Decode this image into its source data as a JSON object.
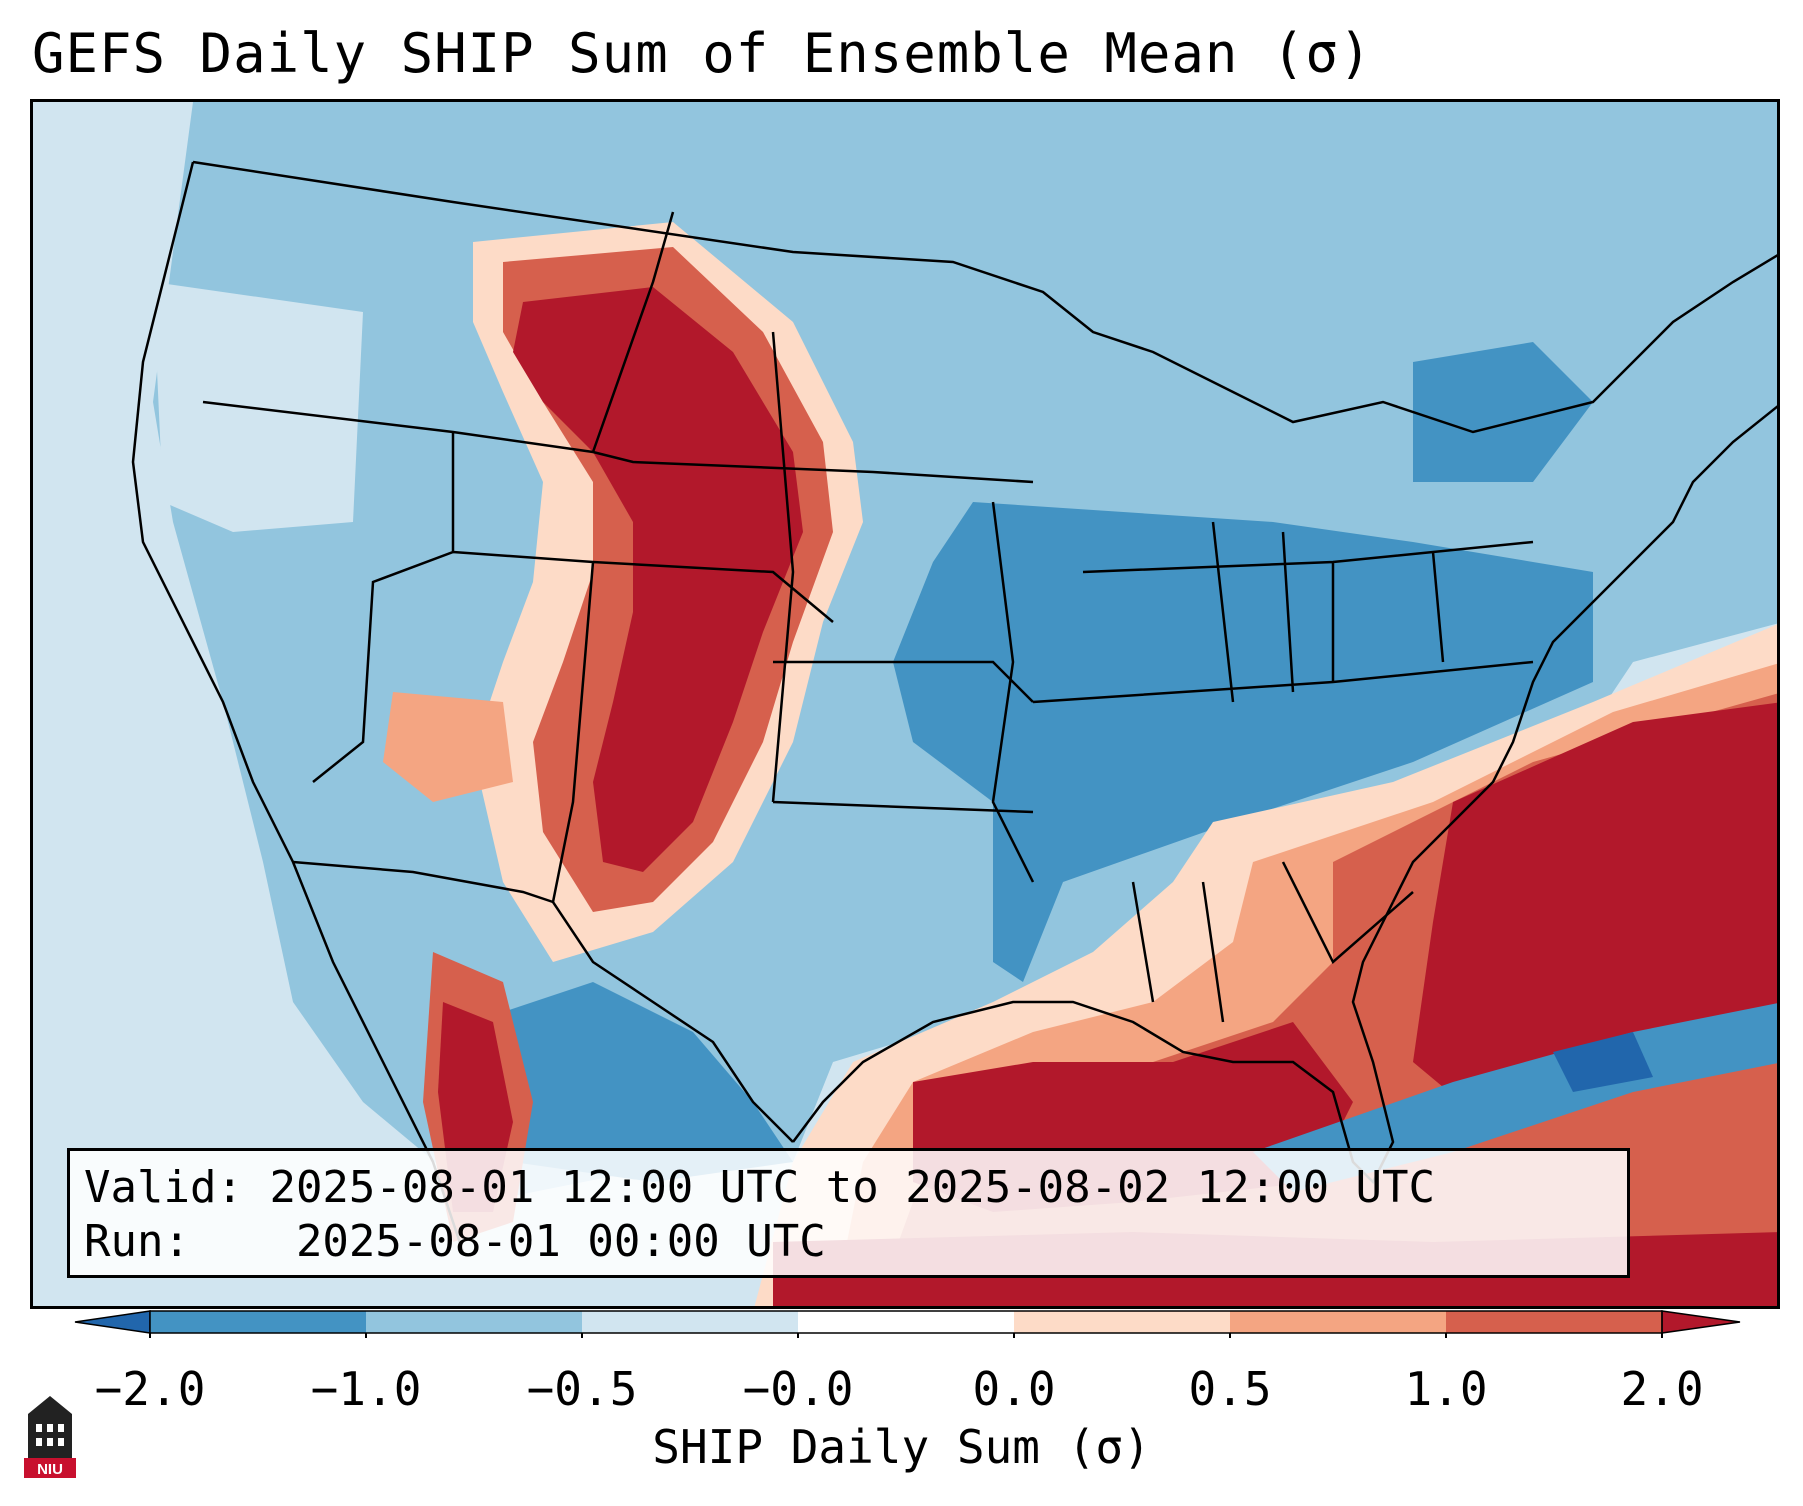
{
  "title": "GEFS Daily SHIP Sum of Ensemble Mean (σ)",
  "info": {
    "valid_label": "Valid:",
    "valid_value": "2025-08-01 12:00 UTC to 2025-08-02 12:00 UTC",
    "run_label": "Run:",
    "run_value": "2025-08-01 00:00 UTC"
  },
  "colorbar": {
    "label": "SHIP Daily Sum (σ)",
    "ticks": [
      "−2.0",
      "−1.0",
      "−0.5",
      "−0.0",
      "0.0",
      "0.5",
      "1.0",
      "2.0"
    ],
    "colors": [
      "#2166ac",
      "#4393c3",
      "#92c5de",
      "#d1e5f0",
      "#ffffff",
      "#fddbc7",
      "#f4a582",
      "#d6604d",
      "#b2182b"
    ]
  },
  "logo": {
    "text": "NIU",
    "icon": "university-tower-icon"
  }
}
